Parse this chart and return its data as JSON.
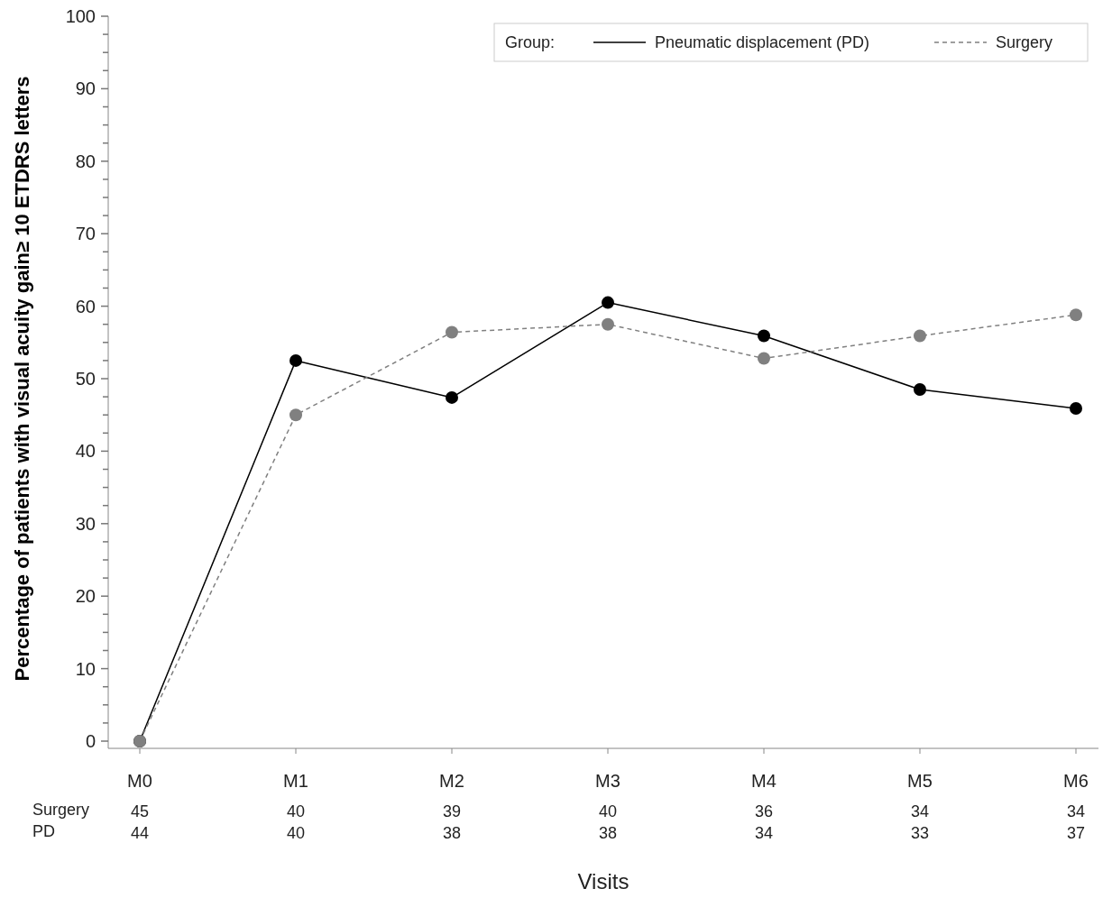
{
  "chart_data": {
    "type": "line",
    "xlabel": "Visits",
    "ylabel": "Percentage of patients with visual acuity gain≥ 10 ETDRS letters",
    "legend_title": "Group:",
    "legend": "top right",
    "marker": "circle",
    "categories": [
      "M0",
      "M1",
      "M2",
      "M3",
      "M4",
      "M5",
      "M6"
    ],
    "series": [
      {
        "name": "Pneumatic displacement (PD)",
        "color": "#000000",
        "line_style": "solid",
        "values": [
          0,
          52.5,
          47.4,
          60.5,
          55.9,
          48.5,
          45.9
        ]
      },
      {
        "name": "Surgery",
        "color": "#808080",
        "line_style": "dashed",
        "values": [
          0,
          45,
          56.4,
          57.5,
          52.8,
          55.9,
          58.8
        ]
      }
    ],
    "ylim": [
      -1,
      100
    ],
    "yticks": [
      0,
      {
        "value": 2.5,
        "label": null
      },
      {
        "value": 5,
        "label": null
      },
      {
        "value": 7.5,
        "label": null
      },
      10,
      {
        "value": 12.5,
        "label": null
      },
      {
        "value": 15,
        "label": null
      },
      {
        "value": 17.5,
        "label": null
      },
      20,
      {
        "value": 22.5,
        "label": null
      },
      {
        "value": 25,
        "label": null
      },
      {
        "value": 27.5,
        "label": null
      },
      30,
      {
        "value": 32.5,
        "label": null
      },
      {
        "value": 35,
        "label": null
      },
      {
        "value": 37.5,
        "label": null
      },
      40,
      {
        "value": 42.5,
        "label": null
      },
      {
        "value": 45,
        "label": null
      },
      {
        "value": 47.5,
        "label": null
      },
      50,
      {
        "value": 52.5,
        "label": null
      },
      {
        "value": 55,
        "label": null
      },
      {
        "value": 57.5,
        "label": null
      },
      60,
      {
        "value": 62.5,
        "label": null
      },
      {
        "value": 65,
        "label": null
      },
      {
        "value": 67.5,
        "label": null
      },
      70,
      {
        "value": 72.5,
        "label": null
      },
      {
        "value": 75,
        "label": null
      },
      {
        "value": 77.5,
        "label": null
      },
      80,
      {
        "value": 82.5,
        "label": null
      },
      {
        "value": 85,
        "label": null
      },
      {
        "value": 87.5,
        "label": null
      },
      90,
      {
        "value": 92.5,
        "label": null
      },
      {
        "value": 95,
        "label": null
      },
      {
        "value": 97.5,
        "label": null
      },
      100
    ],
    "annotations": [
      "Surgery",
      "45",
      "40",
      "39",
      "40",
      "36",
      "34",
      "34",
      "PD",
      "44",
      "40",
      "38",
      "38",
      "34",
      "33",
      "37"
    ],
    "grid": false
  }
}
